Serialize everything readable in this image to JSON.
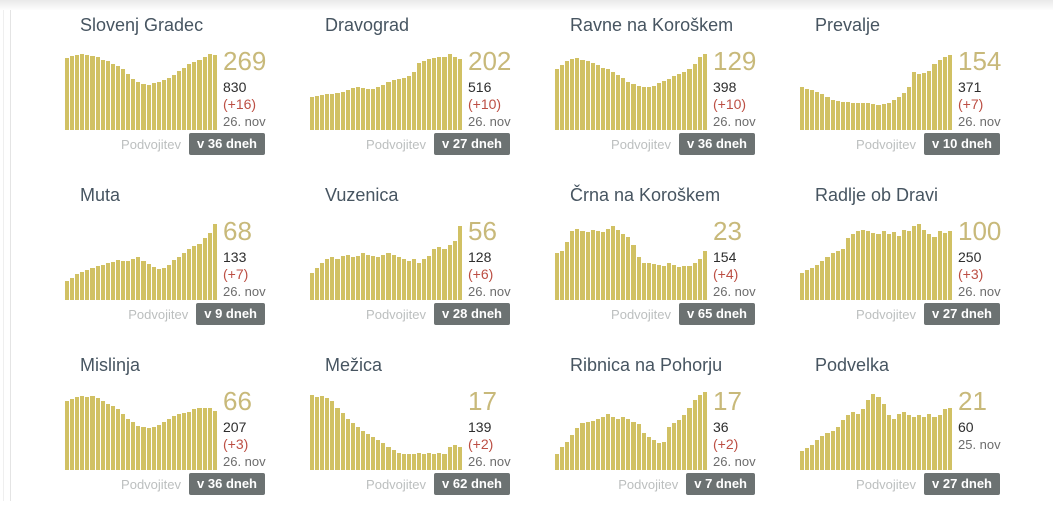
{
  "labels": {
    "doubling": "Podvojitev"
  },
  "colors": {
    "bar": "#d1c164",
    "accent_number": "#c8b97a",
    "delta_red": "#bc4f44",
    "badge_bg": "#6c7272",
    "title": "#475561"
  },
  "chart_data": [
    {
      "type": "bar",
      "title": "Slovenj Gradec",
      "active": "269",
      "total": "830",
      "delta": "(+16)",
      "date": "26. nov",
      "doubling": "v 36 dneh",
      "values": [
        92,
        95,
        96,
        97,
        96,
        95,
        93,
        90,
        88,
        85,
        82,
        78,
        72,
        66,
        62,
        59,
        58,
        60,
        62,
        64,
        67,
        71,
        76,
        80,
        84,
        87,
        90,
        94,
        97,
        96
      ]
    },
    {
      "type": "bar",
      "title": "Dravograd",
      "active": "202",
      "total": "516",
      "delta": "(+10)",
      "date": "26. nov",
      "doubling": "v 27 dneh",
      "values": [
        42,
        44,
        45,
        46,
        46,
        47,
        49,
        51,
        54,
        55,
        54,
        52,
        52,
        55,
        58,
        61,
        64,
        66,
        67,
        69,
        74,
        86,
        89,
        91,
        92,
        93,
        94,
        97,
        93,
        91
      ]
    },
    {
      "type": "bar",
      "title": "Ravne na Koroškem",
      "active": "129",
      "total": "398",
      "delta": "(+10)",
      "date": "26. nov",
      "doubling": "v 36 dneh",
      "values": [
        78,
        83,
        88,
        91,
        92,
        90,
        88,
        86,
        83,
        80,
        78,
        75,
        71,
        67,
        62,
        59,
        56,
        55,
        55,
        57,
        60,
        63,
        66,
        69,
        72,
        74,
        78,
        85,
        93,
        98
      ]
    },
    {
      "type": "bar",
      "title": "Prevalje",
      "active": "154",
      "total": "371",
      "delta": "(+7)",
      "date": "26. nov",
      "doubling": "v 10 dneh",
      "values": [
        55,
        53,
        51,
        49,
        46,
        42,
        39,
        37,
        36,
        36,
        35,
        35,
        34,
        34,
        33,
        32,
        33,
        35,
        38,
        42,
        47,
        55,
        74,
        72,
        73,
        76,
        84,
        90,
        94,
        96
      ]
    },
    {
      "type": "bar",
      "title": "Muta",
      "active": "68",
      "total": "133",
      "delta": "(+7)",
      "date": "26. nov",
      "doubling": "v 9 dneh",
      "values": [
        25,
        28,
        33,
        36,
        39,
        41,
        43,
        45,
        47,
        49,
        51,
        50,
        50,
        52,
        55,
        50,
        46,
        42,
        40,
        41,
        45,
        51,
        55,
        60,
        66,
        69,
        72,
        79,
        86,
        98
      ]
    },
    {
      "type": "bar",
      "title": "Vuzenica",
      "active": "56",
      "total": "128",
      "delta": "(+6)",
      "date": "26. nov",
      "doubling": "v 28 dneh",
      "values": [
        35,
        41,
        48,
        52,
        55,
        53,
        56,
        58,
        55,
        57,
        60,
        58,
        56,
        55,
        58,
        60,
        58,
        55,
        52,
        50,
        52,
        48,
        52,
        56,
        65,
        68,
        65,
        70,
        76,
        95
      ]
    },
    {
      "type": "bar",
      "title": "Črna na Koroškem",
      "active": "23",
      "total": "154",
      "delta": "(+4)",
      "date": "26. nov",
      "doubling": "v 65 dneh",
      "values": [
        60,
        63,
        75,
        88,
        91,
        89,
        87,
        90,
        88,
        87,
        91,
        95,
        90,
        85,
        81,
        71,
        55,
        48,
        47,
        46,
        45,
        44,
        48,
        45,
        42,
        44,
        43,
        48,
        53,
        63
      ]
    },
    {
      "type": "bar",
      "title": "Radlje ob Dravi",
      "active": "100",
      "total": "250",
      "delta": "(+3)",
      "date": "26. nov",
      "doubling": "v 27 dneh",
      "values": [
        35,
        38,
        41,
        45,
        50,
        55,
        60,
        63,
        66,
        80,
        85,
        88,
        90,
        88,
        86,
        85,
        88,
        85,
        87,
        82,
        90,
        88,
        95,
        97,
        90,
        85,
        81,
        88,
        86,
        88
      ]
    },
    {
      "type": "bar",
      "title": "Mislinja",
      "active": "66",
      "total": "207",
      "delta": "(+3)",
      "date": "26. nov",
      "doubling": "v 36 dneh",
      "values": [
        88,
        91,
        93,
        95,
        93,
        95,
        92,
        89,
        85,
        82,
        78,
        72,
        66,
        61,
        57,
        55,
        54,
        55,
        58,
        61,
        65,
        69,
        72,
        73,
        75,
        78,
        80,
        80,
        79,
        76
      ]
    },
    {
      "type": "bar",
      "title": "Mežica",
      "active": "17",
      "total": "139",
      "delta": "(+2)",
      "date": "26. nov",
      "doubling": "v 62 dneh",
      "values": [
        96,
        93,
        95,
        92,
        88,
        80,
        73,
        66,
        60,
        55,
        50,
        46,
        42,
        38,
        35,
        30,
        26,
        22,
        20,
        20,
        21,
        22,
        20,
        22,
        20,
        22,
        21,
        30,
        32,
        30
      ]
    },
    {
      "type": "bar",
      "title": "Ribnica na Pohorju",
      "active": "17",
      "total": "36",
      "delta": "(+2)",
      "date": "26. nov",
      "doubling": "v 7 dneh",
      "values": [
        20,
        30,
        36,
        45,
        54,
        60,
        62,
        63,
        65,
        68,
        72,
        68,
        65,
        68,
        65,
        62,
        59,
        48,
        42,
        38,
        35,
        36,
        55,
        60,
        64,
        70,
        80,
        90,
        96,
        100
      ]
    },
    {
      "type": "bar",
      "title": "Podvelka",
      "active": "21",
      "total": "60",
      "delta": null,
      "date": "25. nov",
      "doubling": "v 27 dneh",
      "values": [
        25,
        28,
        32,
        38,
        44,
        48,
        50,
        55,
        64,
        70,
        75,
        72,
        78,
        90,
        97,
        94,
        85,
        70,
        65,
        72,
        75,
        70,
        68,
        70,
        68,
        72,
        68,
        70,
        78,
        80
      ]
    }
  ]
}
